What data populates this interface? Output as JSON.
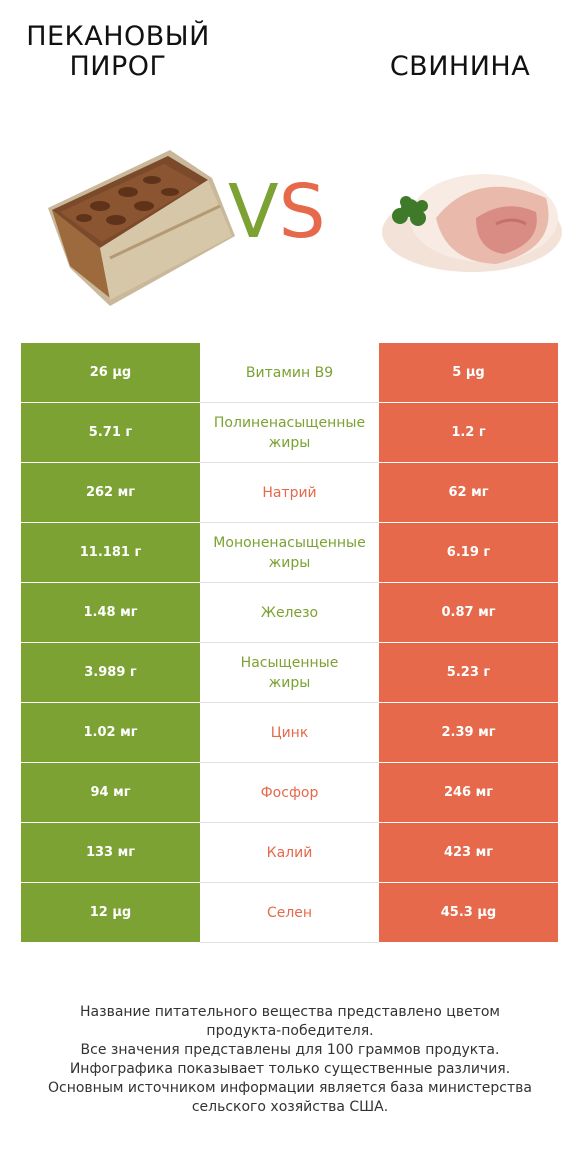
{
  "header": {
    "left_title": "ПЕКАНОВЫЙ\nПИРОГ",
    "right_title": "СВИНИНА",
    "vs_v": "V",
    "vs_s": "S"
  },
  "colors": {
    "left": "#7ba232",
    "right": "#e5694a"
  },
  "rows": [
    {
      "left": "26 µg",
      "nutrient": "Витамин B9",
      "right": "5 µg",
      "winner": "left"
    },
    {
      "left": "5.71 г",
      "nutrient": "Полиненасыщенные\nжиры",
      "right": "1.2 г",
      "winner": "left"
    },
    {
      "left": "262 мг",
      "nutrient": "Натрий",
      "right": "62 мг",
      "winner": "right"
    },
    {
      "left": "11.181 г",
      "nutrient": "Мононенасыщенные\nжиры",
      "right": "6.19 г",
      "winner": "left"
    },
    {
      "left": "1.48 мг",
      "nutrient": "Железо",
      "right": "0.87 мг",
      "winner": "left"
    },
    {
      "left": "3.989 г",
      "nutrient": "Насыщенные\nжиры",
      "right": "5.23 г",
      "winner": "left"
    },
    {
      "left": "1.02 мг",
      "nutrient": "Цинк",
      "right": "2.39 мг",
      "winner": "right"
    },
    {
      "left": "94 мг",
      "nutrient": "Фосфор",
      "right": "246 мг",
      "winner": "right"
    },
    {
      "left": "133 мг",
      "nutrient": "Калий",
      "right": "423 мг",
      "winner": "right"
    },
    {
      "left": "12 µg",
      "nutrient": "Селен",
      "right": "45.3 µg",
      "winner": "right"
    }
  ],
  "footnote": "Название питательного вещества представлено цветом\nпродукта-победителя.\nВсе значения представлены для 100 граммов продукта.\nИнфографика показывает только существенные различия.\nОсновным источником информации является база министерства\nсельского хозяйства США."
}
